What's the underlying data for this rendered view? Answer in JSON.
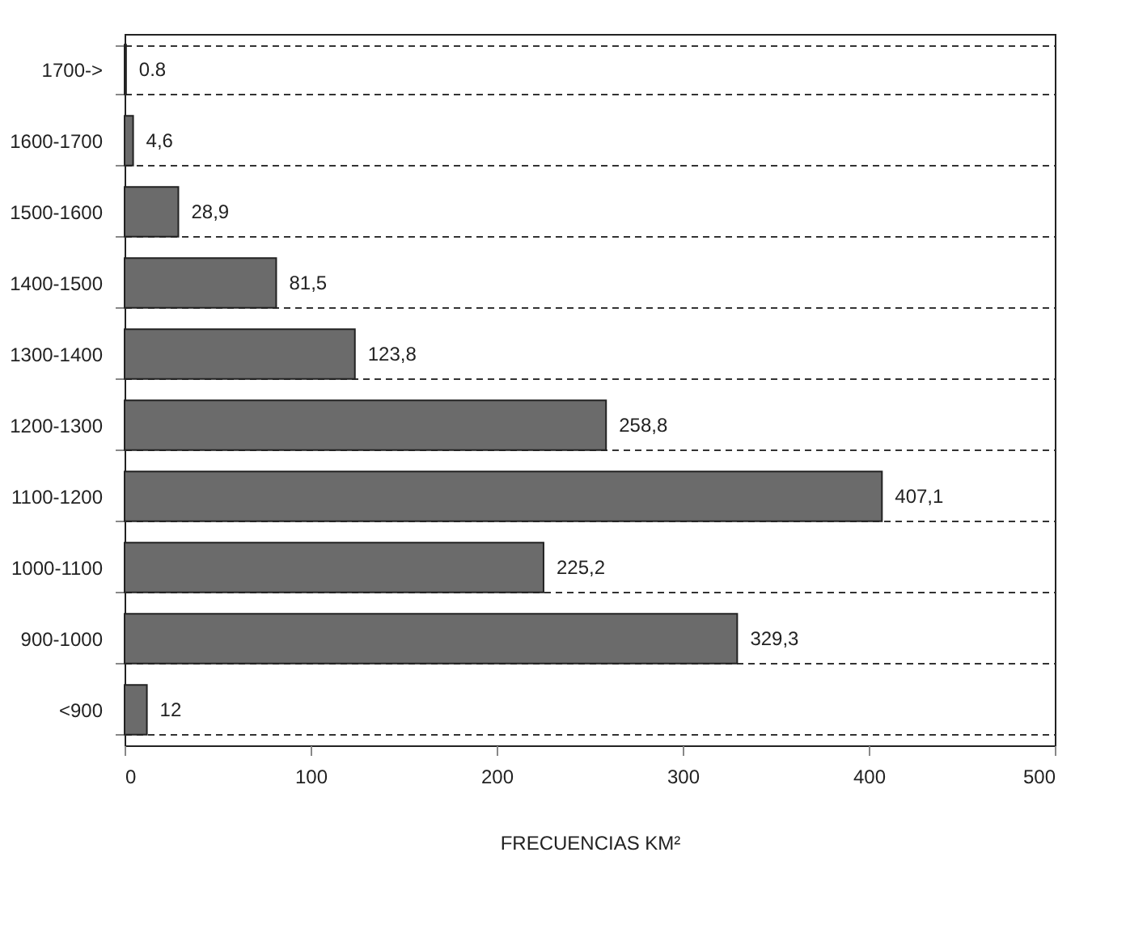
{
  "chart_data": {
    "type": "bar",
    "orientation": "horizontal",
    "xlabel": "FRECUENCIAS KM²",
    "categories": [
      "1700->",
      "1600-1700",
      "1500-1600",
      "1400-1500",
      "1300-1400",
      "1200-1300",
      "1100-1200",
      "1000-1100",
      "900-1000",
      "<900"
    ],
    "values": [
      0.8,
      4.6,
      28.9,
      81.5,
      123.8,
      258.8,
      407.1,
      225.2,
      329.3,
      12
    ],
    "value_labels": [
      "0.8",
      "4,6",
      "28,9",
      "81,5",
      "123,8",
      "258,8",
      "407,1",
      "225,2",
      "329,3",
      "12"
    ],
    "color": "#6b6b6b",
    "xlim": [
      0,
      500
    ],
    "xticks": [
      0,
      100,
      200,
      300,
      400,
      500
    ],
    "grid": "y"
  }
}
